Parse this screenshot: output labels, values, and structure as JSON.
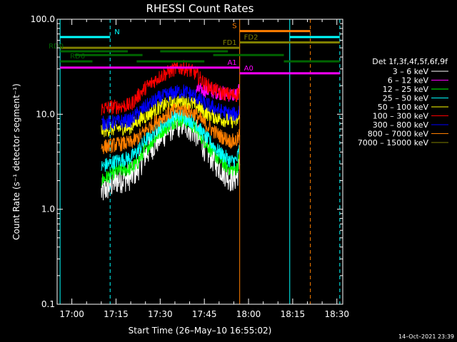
{
  "chart_data": {
    "type": "line",
    "title": "RHESSI Count Rates",
    "xlabel": "Start Time (26–May–10 16:55:02)",
    "ylabel": "Count Rate (s⁻¹ detector segment⁻¹)",
    "x_unit": "minutes",
    "x_range": [
      "16:55",
      "18:32"
    ],
    "ylim": [
      0.1,
      100
    ],
    "y_scale": "log",
    "x_ticks": [
      "17:00",
      "17:15",
      "17:30",
      "17:45",
      "18:00",
      "18:15",
      "18:30"
    ],
    "y_ticks": [
      "0.1",
      "1.0",
      "10.0",
      "100.0"
    ],
    "legend_title": "Det 1f,3f,4f,5f,6f,9f",
    "legend_position": "right",
    "timestamp": "14–Oct–2021 23:39",
    "x": [
      "17:10",
      "17:15",
      "17:20",
      "17:22",
      "17:25",
      "17:30",
      "17:35",
      "17:38",
      "17:42",
      "17:45",
      "17:50",
      "17:54",
      "17:56",
      "17:57"
    ],
    "series": [
      {
        "name": "3 – 6 keV",
        "color": "#ffffff",
        "values": [
          1.5,
          2.0,
          2.2,
          2.6,
          3.8,
          5.8,
          7.8,
          8.0,
          6.5,
          4.5,
          2.8,
          2.1,
          2.2,
          3.0
        ]
      },
      {
        "name": "6 – 12 keV",
        "color": "#ff00ff",
        "values": [
          null,
          null,
          null,
          null,
          null,
          null,
          null,
          null,
          18,
          18,
          17,
          16,
          16,
          18
        ]
      },
      {
        "name": "12 – 25 keV",
        "color": "#00ff00",
        "values": [
          2.0,
          2.5,
          2.7,
          3.0,
          4.3,
          6.5,
          8.5,
          8.8,
          7.2,
          5.2,
          3.3,
          2.6,
          2.7,
          3.5
        ]
      },
      {
        "name": "25 – 50 keV",
        "color": "#00ffff",
        "values": [
          2.8,
          3.2,
          3.5,
          4.0,
          5.3,
          7.5,
          9.5,
          9.6,
          8.0,
          6.0,
          4.0,
          3.2,
          3.3,
          4.5
        ]
      },
      {
        "name": "50 – 100 keV",
        "color": "#ffff00",
        "values": [
          6.8,
          7.1,
          7.3,
          8.5,
          9.5,
          12.0,
          13.5,
          13.8,
          12.5,
          10.5,
          9.0,
          8.5,
          8.5,
          9.0
        ]
      },
      {
        "name": "100 – 300 keV",
        "color": "#ff0000",
        "values": [
          11.5,
          12.0,
          12.5,
          15.0,
          19.0,
          25.0,
          30.0,
          31.0,
          27.0,
          21.0,
          17.0,
          16.0,
          16.0,
          18.0
        ]
      },
      {
        "name": "300 – 800 keV",
        "color": "#0000ff",
        "values": [
          8.0,
          8.3,
          8.6,
          10.0,
          12.0,
          15.0,
          17.0,
          17.5,
          15.5,
          13.0,
          11.0,
          10.0,
          10.0,
          11.5
        ]
      },
      {
        "name": "800 – 7000 keV",
        "color": "#ff7f00",
        "values": [
          4.5,
          4.8,
          5.0,
          5.5,
          6.8,
          9.0,
          11.0,
          11.2,
          10.0,
          8.0,
          6.0,
          5.2,
          5.3,
          6.0
        ]
      },
      {
        "name": "7000 – 15000 keV",
        "color": "#808000",
        "values": [
          null,
          null,
          null,
          null,
          null,
          null,
          null,
          null,
          null,
          null,
          null,
          null,
          null,
          null
        ]
      }
    ],
    "vertical_lines": [
      {
        "time": "16:56",
        "color": "#00ffff",
        "style": "solid"
      },
      {
        "time": "17:13",
        "color": "#00ffff",
        "style": "dashed"
      },
      {
        "time": "17:57",
        "color": "#ff7f00",
        "style": "solid"
      },
      {
        "time": "18:14",
        "color": "#00ffff",
        "style": "solid"
      },
      {
        "time": "18:21",
        "color": "#ff7f00",
        "style": "dashed"
      },
      {
        "time": "18:31",
        "color": "#00ffff",
        "style": "dashed"
      }
    ],
    "state_bars": [
      {
        "label": "N",
        "color": "#00ffff",
        "segments": [
          [
            "16:56",
            "17:13"
          ],
          [
            "18:14",
            "18:31"
          ]
        ],
        "level": 65
      },
      {
        "label": "S",
        "color": "#ff7f00",
        "segments": [
          [
            "17:57",
            "18:21"
          ]
        ],
        "level": 75
      },
      {
        "label": "FD1",
        "color": "#808000",
        "segments": [
          [
            "16:56",
            "17:57"
          ]
        ],
        "level": 50
      },
      {
        "label": "FD2",
        "color": "#808000",
        "segments": [
          [
            "17:57",
            "18:31"
          ]
        ],
        "level": 57
      },
      {
        "label": "RD0",
        "color": "#006400",
        "segments": [
          [
            "16:56",
            "17:19"
          ],
          [
            "17:30",
            "17:53"
          ]
        ],
        "level": 46
      },
      {
        "label": "",
        "color": "#006400",
        "segments": [
          [
            "17:01",
            "17:24"
          ],
          [
            "17:48",
            "18:12"
          ]
        ],
        "level": 42
      },
      {
        "label": "RD6",
        "color": "#006400",
        "segments": [
          [
            "16:56",
            "17:07"
          ],
          [
            "17:22",
            "17:45"
          ],
          [
            "18:12",
            "18:31"
          ]
        ],
        "level": 36
      },
      {
        "label": "A1",
        "color": "#ff00ff",
        "segments": [
          [
            "16:56",
            "17:57"
          ]
        ],
        "level": 31
      },
      {
        "label": "A0",
        "color": "#ff00ff",
        "segments": [
          [
            "17:57",
            "18:31"
          ]
        ],
        "level": 27
      }
    ]
  }
}
